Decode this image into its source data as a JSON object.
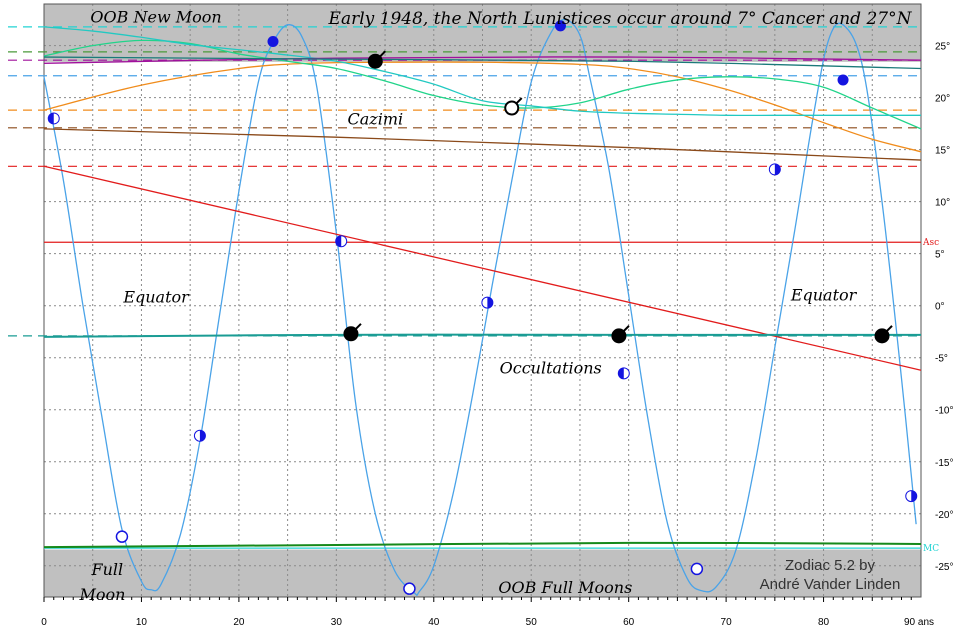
{
  "chart_data": {
    "type": "line",
    "title": "Early  1948, the North Lunistices occur around 7° Cancer and 27°N",
    "xlim": [
      0,
      90
    ],
    "ylim": [
      -28,
      29
    ],
    "x_unit_label": "90 ans",
    "x_ticks": [
      0,
      10,
      20,
      30,
      40,
      50,
      60,
      70,
      80
    ],
    "y_ticks": [
      25,
      20,
      15,
      10,
      5,
      0,
      -5,
      -10,
      -15,
      -20,
      -25
    ],
    "grid": true,
    "oob_bands": [
      {
        "from": 23.44,
        "to": 29
      },
      {
        "from": -28,
        "to": -23.44
      }
    ],
    "annotations": [
      {
        "text": "OOB  New Moon",
        "x": 11.5,
        "y": 27.2
      },
      {
        "text": "Cazimi",
        "x": 34,
        "y": 17.4
      },
      {
        "text": "Equator",
        "x": 11.5,
        "y": 0.3
      },
      {
        "text": "Equator",
        "x": 80,
        "y": 0.5
      },
      {
        "text": "Occultations",
        "x": 52,
        "y": -6.5
      },
      {
        "text": "Full",
        "x": 6.5,
        "y": -25.9
      },
      {
        "text": "Moon",
        "x": 6,
        "y": -28.3
      },
      {
        "text": "OOB  Full Moons",
        "x": 53.5,
        "y": -27.6
      }
    ],
    "credit": [
      "Zodiac 5.2 by",
      "André Vander Linden"
    ],
    "reference_lines": [
      {
        "name": "Asc",
        "y": 6.1,
        "color": "#e21c1c"
      },
      {
        "name": "MC",
        "y": -23.3,
        "color": "#22d3d3"
      }
    ],
    "series": [
      {
        "name": "Moon",
        "color": "#4aa3e8",
        "x": [
          0,
          2,
          4,
          6,
          8,
          10,
          11,
          12,
          14,
          16,
          18,
          20,
          22,
          23.5,
          25,
          26.5,
          28,
          30,
          32,
          34,
          36,
          38,
          38.5,
          40,
          42,
          44,
          46,
          48,
          50,
          52,
          53.5,
          55,
          56,
          58,
          60,
          62,
          64,
          66,
          67.5,
          69,
          71,
          73,
          75,
          77,
          79,
          80.5,
          82,
          84,
          86,
          88,
          89.5
        ],
        "y": [
          22,
          12,
          0,
          -11,
          -21.5,
          -26.5,
          -27.3,
          -26.8,
          -22,
          -13,
          -1,
          11,
          21.5,
          25.3,
          27,
          25.8,
          21,
          7,
          -9.5,
          -20,
          -25.5,
          -27.6,
          -27.5,
          -25,
          -18,
          -8.5,
          2,
          12,
          21.5,
          26.2,
          27.5,
          26,
          22,
          13,
          1,
          -11,
          -21,
          -26.2,
          -27.4,
          -27,
          -23.5,
          -15,
          -4,
          7,
          18.5,
          25.5,
          27,
          23,
          10,
          -7,
          -21
        ]
      },
      {
        "name": "Sun",
        "color": "#f08c1c",
        "x": [
          0,
          10,
          20,
          27,
          35,
          45,
          55,
          60,
          65,
          70,
          75,
          80,
          85,
          90
        ],
        "y": [
          18.8,
          21.2,
          22.8,
          23.3,
          23.4,
          23.4,
          23.2,
          22.8,
          22,
          20.8,
          19.3,
          17.6,
          16,
          14.8
        ]
      },
      {
        "name": "Venus",
        "color": "#21d48a",
        "x": [
          0,
          5,
          10,
          15,
          20,
          25,
          30,
          35,
          40,
          45,
          50,
          55,
          60,
          65,
          70,
          75,
          80,
          85,
          90
        ],
        "y": [
          24,
          25,
          25.5,
          25.2,
          24.2,
          23.5,
          22.8,
          21.6,
          20.2,
          19.3,
          19,
          19.5,
          20.8,
          21.7,
          22,
          21.8,
          21,
          19,
          17
        ]
      },
      {
        "name": "Mercury",
        "color": "#22c9c2",
        "x": [
          0,
          5,
          10,
          15,
          20,
          24,
          30,
          35,
          40,
          45,
          50,
          55,
          60,
          65,
          70,
          75,
          80,
          85,
          90
        ],
        "y": [
          26.8,
          26.4,
          25.8,
          25.1,
          24.6,
          24.2,
          23.5,
          22.5,
          21.3,
          19.7,
          19.2,
          18.7,
          18.5,
          18.4,
          18.3,
          18.3,
          18.3,
          18.3,
          18.3
        ]
      },
      {
        "name": "Pluto",
        "color": "#a0109c",
        "x": [
          0,
          30,
          60,
          90
        ],
        "y": [
          23.3,
          23.8,
          23.9,
          23.6
        ]
      },
      {
        "name": "Uranus",
        "color": "#1b7a7a",
        "x": [
          0,
          30,
          60,
          90
        ],
        "y": [
          23.9,
          23.7,
          23.5,
          22.8
        ]
      },
      {
        "name": "Saturn",
        "color": "#8b4a1a",
        "x": [
          0,
          15,
          30,
          45,
          60,
          75,
          90
        ],
        "y": [
          17,
          16.6,
          16.2,
          15.7,
          15.2,
          14.6,
          14
        ]
      },
      {
        "name": "Mars",
        "color": "#e21c1c",
        "x": [
          0,
          90
        ],
        "y": [
          13.4,
          -6.2
        ]
      },
      {
        "name": "Neptune",
        "color": "#1a9c94",
        "x": [
          0,
          30,
          60,
          90
        ],
        "y": [
          -3,
          -2.8,
          -2.8,
          -2.8
        ]
      },
      {
        "name": "Jupiter",
        "color": "#16891a",
        "x": [
          0,
          30,
          60,
          90
        ],
        "y": [
          -23.2,
          -23,
          -22.8,
          -22.9
        ]
      }
    ],
    "dashed_levels": [
      {
        "color": "#22d3d3",
        "y": 26.8
      },
      {
        "color": "#4a9a3a",
        "y": 24.4
      },
      {
        "color": "#a0109c",
        "y": 23.6
      },
      {
        "color": "#4aa3e8",
        "y": 22.1
      },
      {
        "color": "#f08c1c",
        "y": 18.8
      },
      {
        "color": "#8b4a1a",
        "y": 17.1
      },
      {
        "color": "#e21c1c",
        "y": 13.4
      },
      {
        "color": "#1a9c94",
        "y": -2.9
      }
    ],
    "moon_phases": [
      {
        "x": 1,
        "y": 18,
        "phase": "last-quarter"
      },
      {
        "x": 8,
        "y": -22.2,
        "phase": "full"
      },
      {
        "x": 16,
        "y": -12.5,
        "phase": "first-quarter"
      },
      {
        "x": 23.5,
        "y": 25.4,
        "phase": "new"
      },
      {
        "x": 30.5,
        "y": 6.2,
        "phase": "last-quarter"
      },
      {
        "x": 37.5,
        "y": -27.2,
        "phase": "full"
      },
      {
        "x": 45.5,
        "y": 0.3,
        "phase": "first-quarter"
      },
      {
        "x": 53,
        "y": 26.9,
        "phase": "new"
      },
      {
        "x": 59.5,
        "y": -6.5,
        "phase": "last-quarter"
      },
      {
        "x": 67,
        "y": -25.3,
        "phase": "full"
      },
      {
        "x": 75,
        "y": 13.1,
        "phase": "first-quarter"
      },
      {
        "x": 82,
        "y": 21.7,
        "phase": "new"
      },
      {
        "x": 89,
        "y": -18.3,
        "phase": "first-quarter"
      }
    ],
    "events": [
      {
        "x": 34,
        "y": 23.5,
        "glyphs": [
          {
            "t": "☉",
            "c": "#f08c1c"
          },
          {
            "t": "♅",
            "c": "#1b7a7a"
          }
        ],
        "dx": 6,
        "dy": 20
      },
      {
        "x": 48,
        "y": 19,
        "hollow": true,
        "glyphs": [
          {
            "t": "☿",
            "c": "#22c9c2"
          },
          {
            "t": "♀",
            "c": "#21d48a"
          }
        ],
        "dx": 22,
        "dy": 7
      },
      {
        "x": 31.5,
        "y": -2.7,
        "glyphs": [
          {
            "t": "☽",
            "c": "#4a4ae0"
          },
          {
            "t": "♆",
            "c": "#1a9c94"
          }
        ],
        "dx": 14,
        "dy": 7
      },
      {
        "x": 59,
        "y": -2.9,
        "glyphs": [
          {
            "t": "☽",
            "c": "#4a4ae0"
          },
          {
            "t": "♆",
            "c": "#1a9c94"
          }
        ],
        "dx": 14,
        "dy": 7
      },
      {
        "x": 86,
        "y": -2.9,
        "glyphs": [
          {
            "t": "☽",
            "c": "#4a4ae0"
          },
          {
            "t": "♆",
            "c": "#1a9c94"
          }
        ],
        "dx": 14,
        "dy": 7
      }
    ],
    "left_symbols": [
      {
        "t": "☿",
        "y": 26.8,
        "c": "#22d3d3"
      },
      {
        "t": "♀",
        "y": 24.4,
        "c": "#21d48a"
      },
      {
        "t": "♅",
        "y": 23.8,
        "c": "#1b7a7a"
      },
      {
        "t": "♇",
        "y": 23.2,
        "c": "#a0109c"
      },
      {
        "t": "☽",
        "y": 22.1,
        "c": "#4aa3e8"
      },
      {
        "t": "☉",
        "y": 18.8,
        "c": "#f08c1c"
      },
      {
        "t": "♄",
        "y": 17.1,
        "c": "#8b4a1a"
      },
      {
        "t": "♂",
        "y": 13.4,
        "c": "#e21c1c"
      },
      {
        "t": "♆",
        "y": -2.9,
        "c": "#1a9c94"
      },
      {
        "t": "♃",
        "y": -22.9,
        "c": "#16891a"
      }
    ],
    "inline_symbols": [
      {
        "t": "♇",
        "x": 7,
        "y": 23.7,
        "c": "#a0109c"
      },
      {
        "t": "♀",
        "x": 19.5,
        "y": 25.5,
        "c": "#21d48a"
      },
      {
        "t": "♇",
        "x": 40,
        "y": 23.8,
        "c": "#a0109c"
      },
      {
        "t": "♇",
        "x": 66,
        "y": 23.8,
        "c": "#a0109c"
      },
      {
        "t": "♇",
        "x": 72.5,
        "y": 23.8,
        "c": "#a0109c"
      },
      {
        "t": "☉",
        "x": 27.5,
        "y": 23.3,
        "c": "#f08c1c"
      },
      {
        "t": "☉",
        "x": 60.5,
        "y": 21.9,
        "c": "#f08c1c"
      },
      {
        "t": "♀",
        "x": 87,
        "y": 18.8,
        "c": "#21d48a"
      },
      {
        "t": "☿",
        "x": 84.5,
        "y": 18.6,
        "c": "#22c9c2"
      },
      {
        "t": "♄",
        "x": 10,
        "y": 16.8,
        "c": "#8b4a1a"
      },
      {
        "t": "♄",
        "x": 43,
        "y": 15.9,
        "c": "#8b4a1a"
      },
      {
        "t": "♄",
        "x": 75,
        "y": 14.8,
        "c": "#8b4a1a"
      },
      {
        "t": "♂",
        "x": 16,
        "y": 10.9,
        "c": "#e21c1c"
      },
      {
        "t": "♂",
        "x": 48.5,
        "y": 4.2,
        "c": "#e21c1c"
      },
      {
        "t": "♂",
        "x": 81.5,
        "y": -3.9,
        "c": "#e21c1c"
      },
      {
        "t": "♆",
        "x": 3.5,
        "y": -2.6,
        "c": "#1a9c94"
      },
      {
        "t": "♆",
        "x": 69.5,
        "y": -2.6,
        "c": "#1a9c94"
      },
      {
        "t": "♃",
        "x": 12.5,
        "y": -22.3,
        "c": "#16891a"
      },
      {
        "t": "♃",
        "x": 45,
        "y": -22.3,
        "c": "#16891a"
      },
      {
        "t": "♃",
        "x": 78,
        "y": -22.3,
        "c": "#16891a"
      }
    ]
  }
}
